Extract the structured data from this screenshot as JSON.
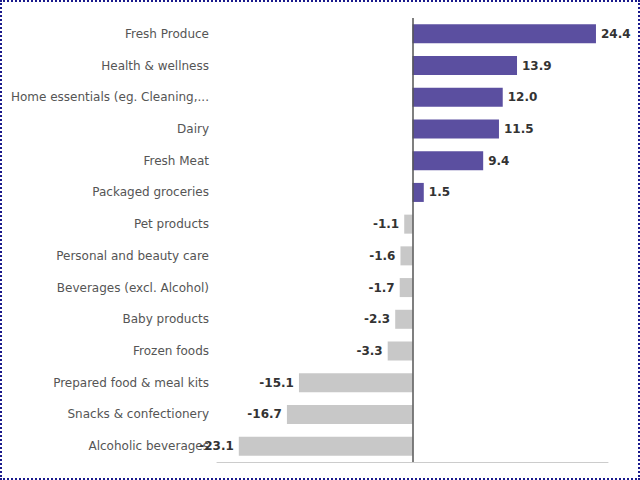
{
  "chart_data": {
    "type": "bar",
    "orientation": "horizontal",
    "categories": [
      "Fresh Produce",
      "Health & wellness",
      "Home essentials (eg. Cleaning,...",
      "Dairy",
      "Fresh Meat",
      "Packaged groceries",
      "Pet products",
      "Personal and beauty care",
      "Beverages (excl. Alcohol)",
      "Baby products",
      "Frozen foods",
      "Prepared food & meal kits",
      "Snacks & confectionery",
      "Alcoholic beverages"
    ],
    "values": [
      24.4,
      13.9,
      12.0,
      11.5,
      9.4,
      1.5,
      -1.1,
      -1.6,
      -1.7,
      -2.3,
      -3.3,
      -15.1,
      -16.7,
      -23.1
    ],
    "value_labels": [
      "24.4",
      "13.9",
      "12.0",
      "11.5",
      "9.4",
      "1.5",
      "-1.1",
      "-1.6",
      "-1.7",
      "-2.3",
      "-3.3",
      "-15.1",
      "-16.7",
      "-23.1"
    ],
    "colors": [
      "#5b4fa0",
      "#5b4fa0",
      "#5b4fa0",
      "#5b4fa0",
      "#5b4fa0",
      "#5b4fa0",
      "#c8c8c8",
      "#c8c8c8",
      "#c8c8c8",
      "#c8c8c8",
      "#c8c8c8",
      "#c8c8c8",
      "#c8c8c8",
      "#c8c8c8"
    ],
    "xlim": [
      -26,
      26
    ],
    "data_labels": true,
    "tick_labels": "y",
    "grid": false
  }
}
